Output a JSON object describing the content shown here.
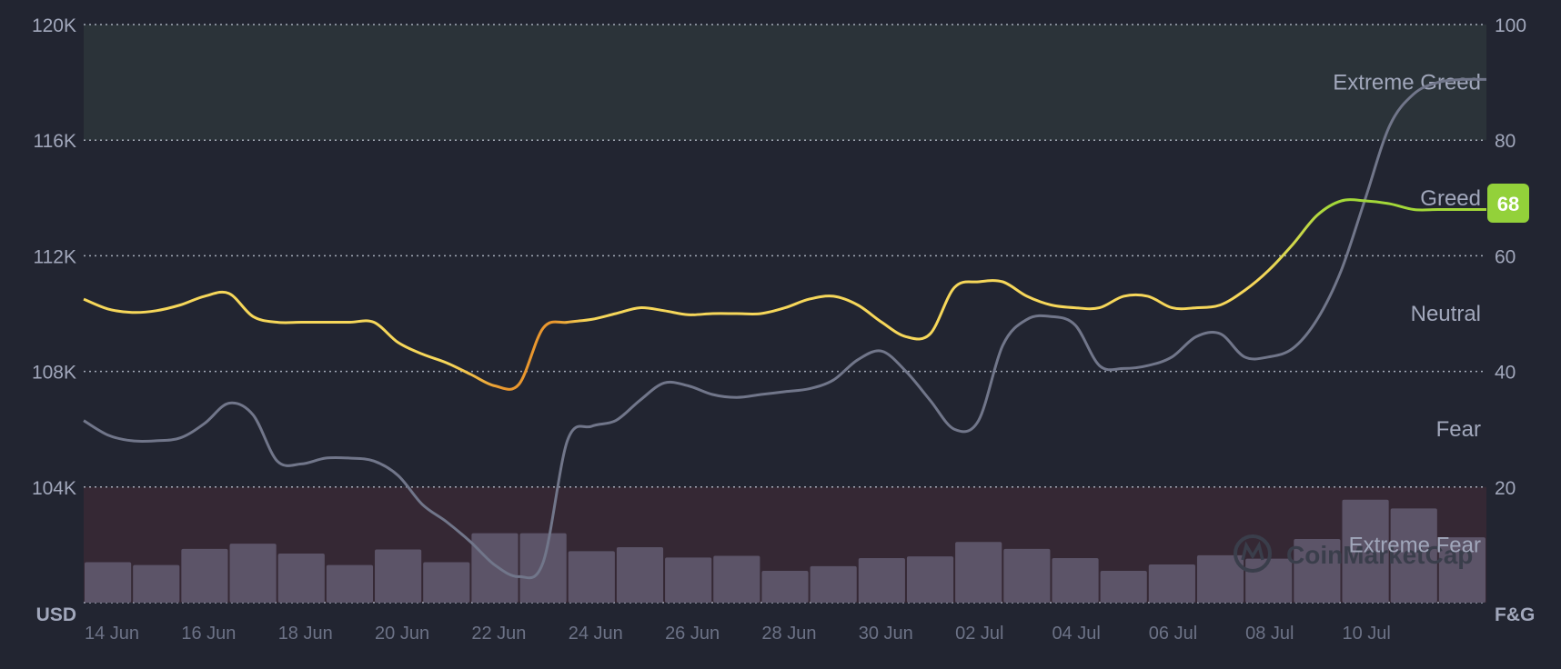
{
  "chart_data": {
    "type": "line",
    "y_left_unit": "USD",
    "y_right_unit": "F&G",
    "y_left_ticks": [
      "120K",
      "116K",
      "112K",
      "108K",
      "104K"
    ],
    "y_left_range": [
      100000,
      120000
    ],
    "y_right_ticks": [
      "100",
      "80",
      "60",
      "40",
      "20"
    ],
    "y_right_range": [
      0,
      100
    ],
    "x_ticks": [
      "14 Jun",
      "16 Jun",
      "18 Jun",
      "20 Jun",
      "22 Jun",
      "24 Jun",
      "26 Jun",
      "28 Jun",
      "30 Jun",
      "02 Jul",
      "04 Jul",
      "06 Jul",
      "08 Jul",
      "10 Jul"
    ],
    "zones": [
      {
        "label": "Extreme Greed",
        "range": [
          80,
          100
        ],
        "color": "#2b3339"
      },
      {
        "label": "Greed",
        "range": [
          60,
          80
        ]
      },
      {
        "label": "Neutral",
        "range": [
          40,
          60
        ]
      },
      {
        "label": "Fear",
        "range": [
          20,
          40
        ]
      },
      {
        "label": "Extreme Fear",
        "range": [
          0,
          20
        ],
        "color": "#352834"
      }
    ],
    "current_value": "68",
    "colors": {
      "background": "#222531",
      "price_line": "#71768a",
      "index_line": "#f6d75a",
      "index_fear": "#e9972e",
      "index_greed": "#a3d839",
      "badge": "#93d13a",
      "volume_bars": "#5c5468"
    },
    "series": [
      {
        "key": "price",
        "axis": "left",
        "x": [
          0,
          0.5,
          1,
          1.5,
          2,
          2.5,
          3,
          3.5,
          4,
          4.5,
          5,
          5.5,
          6,
          6.5,
          7,
          7.5,
          8,
          8.5,
          9,
          9.5,
          10,
          10.5,
          11,
          11.5,
          12,
          12.5,
          13,
          13.5,
          14,
          14.5,
          15,
          15.5,
          16,
          16.5,
          17,
          17.5,
          18,
          18.5,
          19,
          19.5,
          20,
          20.5,
          21,
          21.5,
          22,
          22.5,
          23,
          23.5,
          24,
          24.5,
          25,
          25.5,
          26,
          26.5,
          27,
          27.5,
          28,
          28.5,
          29
        ],
        "values": [
          106300,
          105800,
          105600,
          105600,
          105700,
          106200,
          106900,
          106500,
          104900,
          104800,
          105000,
          105000,
          104900,
          104400,
          103400,
          102800,
          102100,
          101300,
          100900,
          101400,
          105600,
          106100,
          106300,
          107000,
          107600,
          107500,
          107200,
          107100,
          107200,
          107300,
          107400,
          107700,
          108400,
          108700,
          108000,
          107000,
          106000,
          106300,
          108900,
          109800,
          109900,
          109600,
          108200,
          108100,
          108200,
          108500,
          109200,
          109300,
          108500,
          108500,
          108800,
          109800,
          111500,
          114000,
          116500,
          117600,
          118000,
          118100,
          118100
        ]
      },
      {
        "key": "fear_greed",
        "axis": "right",
        "x": [
          0,
          0.5,
          1,
          1.5,
          2,
          2.5,
          3,
          3.5,
          4,
          4.5,
          5,
          5.5,
          6,
          6.5,
          7,
          7.5,
          8,
          8.5,
          9,
          9.5,
          10,
          10.5,
          11,
          11.5,
          12,
          12.5,
          13,
          13.5,
          14,
          14.5,
          15,
          15.5,
          16,
          16.5,
          17,
          17.5,
          18,
          18.5,
          19,
          19.5,
          20,
          20.5,
          21,
          21.5,
          22,
          22.5,
          23,
          23.5,
          24,
          24.5,
          25,
          25.5,
          26,
          26.5,
          27,
          27.5,
          28,
          28.5,
          29
        ],
        "values": [
          52.5,
          50.8,
          50.2,
          50.5,
          51.5,
          53,
          53.5,
          49.5,
          48.5,
          48.5,
          48.5,
          48.5,
          48.5,
          45,
          43,
          41.5,
          39.5,
          37.5,
          37.8,
          47.5,
          48.5,
          49,
          50,
          51,
          50.5,
          49.8,
          50,
          50,
          50,
          51,
          52.5,
          53,
          51.5,
          48.5,
          46,
          46.5,
          54.5,
          55.5,
          55.5,
          53,
          51.5,
          51,
          51,
          53,
          53,
          51,
          51,
          51.5,
          54,
          57.5,
          62,
          67,
          69.5,
          69.5,
          69,
          68,
          68,
          68,
          68
        ]
      },
      {
        "key": "volume",
        "type": "bar",
        "values": [
          7,
          6.5,
          9.3,
          10.2,
          8.5,
          6.5,
          9.2,
          7,
          12,
          12,
          8.9,
          9.6,
          7.8,
          8.1,
          5.5,
          6.3,
          7.7,
          8,
          10.5,
          9.3,
          7.7,
          5.5,
          6.6,
          8.2,
          7.6,
          11,
          17.8,
          16.3,
          11.3
        ]
      }
    ]
  }
}
